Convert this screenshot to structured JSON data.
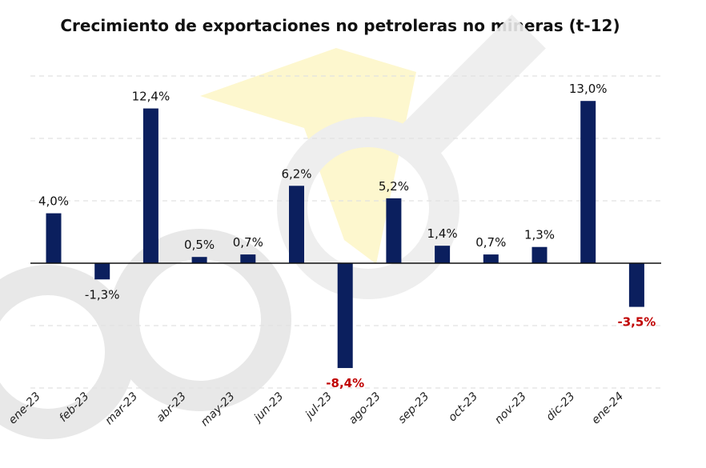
{
  "chart_data": {
    "type": "bar",
    "title": "Crecimiento de exportaciones no petroleras no mineras (t-12)",
    "categories": [
      "ene-23",
      "feb-23",
      "mar-23",
      "abr-23",
      "may-23",
      "jun-23",
      "jul-23",
      "ago-23",
      "sep-23",
      "oct-23",
      "nov-23",
      "dic-23",
      "ene-24"
    ],
    "values": [
      4.0,
      -1.3,
      12.4,
      0.5,
      0.7,
      6.2,
      -8.4,
      5.2,
      1.4,
      0.7,
      1.3,
      13.0,
      -3.5
    ],
    "labels": [
      "4,0%",
      "-1,3%",
      "12,4%",
      "0,5%",
      "0,7%",
      "6,2%",
      "-8,4%",
      "5,2%",
      "1,4%",
      "0,7%",
      "1,3%",
      "13,0%",
      "-3,5%"
    ],
    "label_colors": [
      "#111111",
      "#111111",
      "#111111",
      "#111111",
      "#111111",
      "#111111",
      "#c00000",
      "#111111",
      "#111111",
      "#111111",
      "#111111",
      "#111111",
      "#c00000"
    ],
    "ylim": [
      -10,
      15
    ],
    "gridlines": [
      15,
      10,
      5,
      0,
      -5,
      -10
    ],
    "grid": true,
    "bar_color": "#0b1f5e",
    "xlabel": "",
    "ylabel": ""
  }
}
